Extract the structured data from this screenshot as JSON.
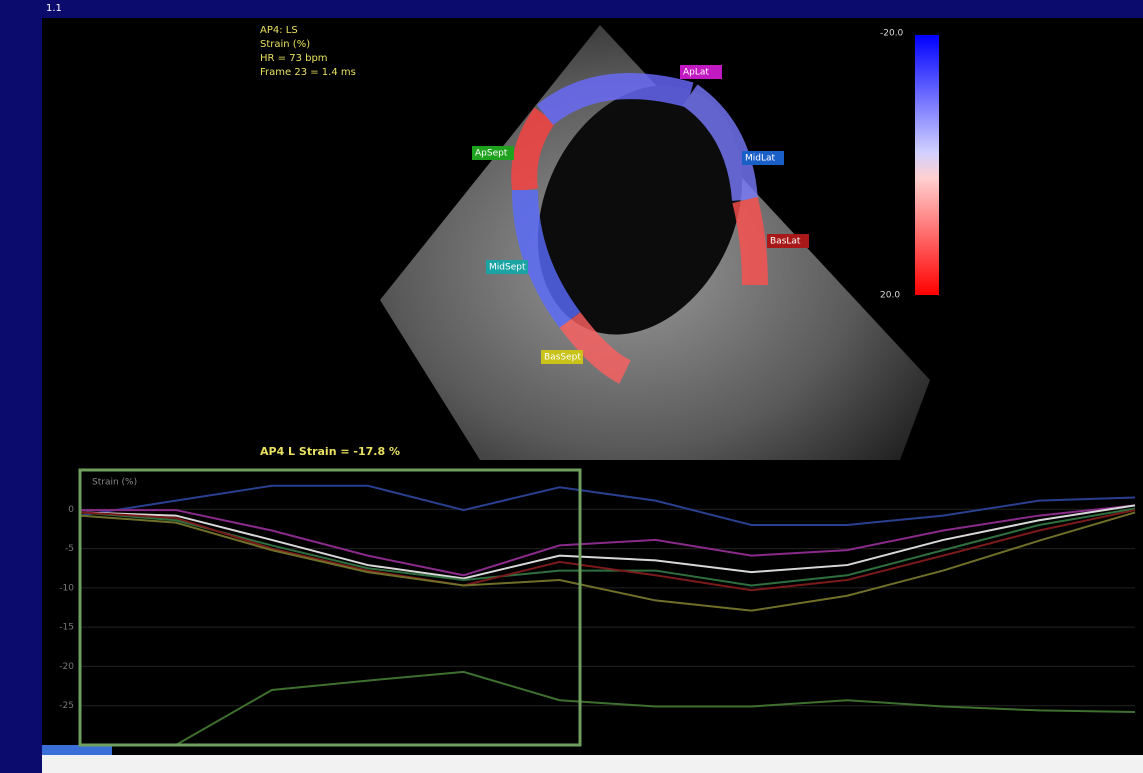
{
  "header": {
    "corner": "1.1"
  },
  "info": {
    "lines": [
      "AP4: LS",
      "Strain (%)",
      "HR = 73 bpm",
      "Frame 23 = 1.4 ms"
    ]
  },
  "segments": [
    {
      "label": "ApSept",
      "color": "#1fa31f"
    },
    {
      "label": "MidSept",
      "color": "#1ca3a3"
    },
    {
      "label": "BasSept",
      "color": "#c8c21a"
    },
    {
      "label": "ApLat",
      "color": "#c21ac2"
    },
    {
      "label": "MidLat",
      "color": "#1a5ec8"
    },
    {
      "label": "BasLat",
      "color": "#a81818"
    }
  ],
  "colorbar": {
    "top": "-20.0",
    "bottom": "20.0"
  },
  "result": "AP4 L Strain = -17.8 %",
  "graph": {
    "title": "Strain (%)",
    "ylim": [
      -30,
      5
    ],
    "yticks": [
      0,
      -5,
      -10,
      -15,
      -20,
      -25
    ],
    "series": [
      {
        "color": "#2a3f8f",
        "values": [
          -0.8,
          1.1,
          3,
          3,
          -0.1,
          2.8,
          1.1,
          -2,
          -2,
          -0.8,
          1.1,
          1.5
        ]
      },
      {
        "color": "#8a2a8a",
        "values": [
          -0.1,
          -0.1,
          -2.7,
          -5.9,
          -8.4,
          -4.6,
          -3.9,
          -5.9,
          -5.2,
          -2.7,
          -0.8,
          0.5
        ]
      },
      {
        "color": "#d8d8d8",
        "values": [
          -0.4,
          -0.8,
          -3.9,
          -7.1,
          -8.8,
          -5.9,
          -6.5,
          -8,
          -7.1,
          -3.9,
          -1.4,
          0.5
        ]
      },
      {
        "color": "#2f6f3f",
        "values": [
          -0.4,
          -1.4,
          -4.6,
          -7.5,
          -9,
          -7.8,
          -7.8,
          -9.7,
          -8.4,
          -5.2,
          -2,
          0.1
        ]
      },
      {
        "color": "#7a1a1a",
        "values": [
          -0.4,
          -1.1,
          -5,
          -7.8,
          -9.7,
          -6.7,
          -8.4,
          -10.3,
          -9,
          -5.9,
          -2.7,
          -0.1
        ]
      },
      {
        "color": "#6f6f2a",
        "values": [
          -0.8,
          -1.7,
          -5.2,
          -8,
          -9.7,
          -9,
          -11.6,
          -12.9,
          -11,
          -7.8,
          -4,
          -0.4
        ]
      },
      {
        "color": "#3f6f2f",
        "values": [
          -30,
          -30,
          -23,
          -21.8,
          -20.7,
          -24.3,
          -25.1,
          -25.1,
          -24.3,
          -25.1,
          -25.6,
          -25.8
        ]
      }
    ]
  }
}
